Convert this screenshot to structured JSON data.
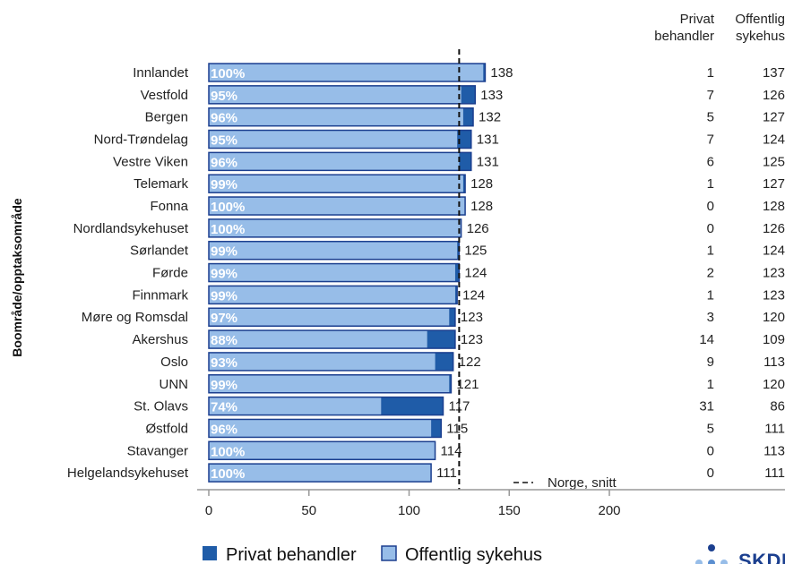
{
  "chart_data": {
    "type": "bar",
    "orientation": "horizontal",
    "stacked": true,
    "ylabel": "Boområde/opptaksområde",
    "xlim": [
      0,
      200
    ],
    "xticks": [
      0,
      50,
      100,
      150,
      200
    ],
    "reference_line": {
      "value": 125,
      "label": "Norge, snitt",
      "style": "dashed"
    },
    "columns": {
      "privat": "Privat\nbehandler",
      "offentlig": "Offentlig\nsykehus"
    },
    "legend": [
      "Privat behandler",
      "Offentlig sykehus"
    ],
    "colors": {
      "privat": "#1f5ca8",
      "offentlig": "#97bde8",
      "border": "#1b3f8f"
    },
    "rows": [
      {
        "area": "Innlandet",
        "total": 138,
        "pct": "100%",
        "privat": 1,
        "offentlig": 137
      },
      {
        "area": "Vestfold",
        "total": 133,
        "pct": "95%",
        "privat": 7,
        "offentlig": 126
      },
      {
        "area": "Bergen",
        "total": 132,
        "pct": "96%",
        "privat": 5,
        "offentlig": 127
      },
      {
        "area": "Nord-Trøndelag",
        "total": 131,
        "pct": "95%",
        "privat": 7,
        "offentlig": 124
      },
      {
        "area": "Vestre Viken",
        "total": 131,
        "pct": "96%",
        "privat": 6,
        "offentlig": 125
      },
      {
        "area": "Telemark",
        "total": 128,
        "pct": "99%",
        "privat": 1,
        "offentlig": 127
      },
      {
        "area": "Fonna",
        "total": 128,
        "pct": "100%",
        "privat": 0,
        "offentlig": 128
      },
      {
        "area": "Nordlandsykehuset",
        "total": 126,
        "pct": "100%",
        "privat": 0,
        "offentlig": 126
      },
      {
        "area": "Sørlandet",
        "total": 125,
        "pct": "99%",
        "privat": 1,
        "offentlig": 124
      },
      {
        "area": "Førde",
        "total": 124,
        "pct": "99%",
        "privat": 2,
        "offentlig": 123
      },
      {
        "area": "Finnmark",
        "total": 124,
        "pct": "99%",
        "privat": 1,
        "offentlig": 123
      },
      {
        "area": "Møre og Romsdal",
        "total": 123,
        "pct": "97%",
        "privat": 3,
        "offentlig": 120
      },
      {
        "area": "Akershus",
        "total": 123,
        "pct": "88%",
        "privat": 14,
        "offentlig": 109
      },
      {
        "area": "Oslo",
        "total": 122,
        "pct": "93%",
        "privat": 9,
        "offentlig": 113
      },
      {
        "area": "UNN",
        "total": 121,
        "pct": "99%",
        "privat": 1,
        "offentlig": 120
      },
      {
        "area": "St. Olavs",
        "total": 117,
        "pct": "74%",
        "privat": 31,
        "offentlig": 86
      },
      {
        "area": "Østfold",
        "total": 115,
        "pct": "96%",
        "privat": 5,
        "offentlig": 111
      },
      {
        "area": "Stavanger",
        "total": 114,
        "pct": "100%",
        "privat": 0,
        "offentlig": 113
      },
      {
        "area": "Helgelandsykehuset",
        "total": 111,
        "pct": "100%",
        "privat": 0,
        "offentlig": 111
      }
    ]
  },
  "logo": {
    "text": "SKDE"
  }
}
